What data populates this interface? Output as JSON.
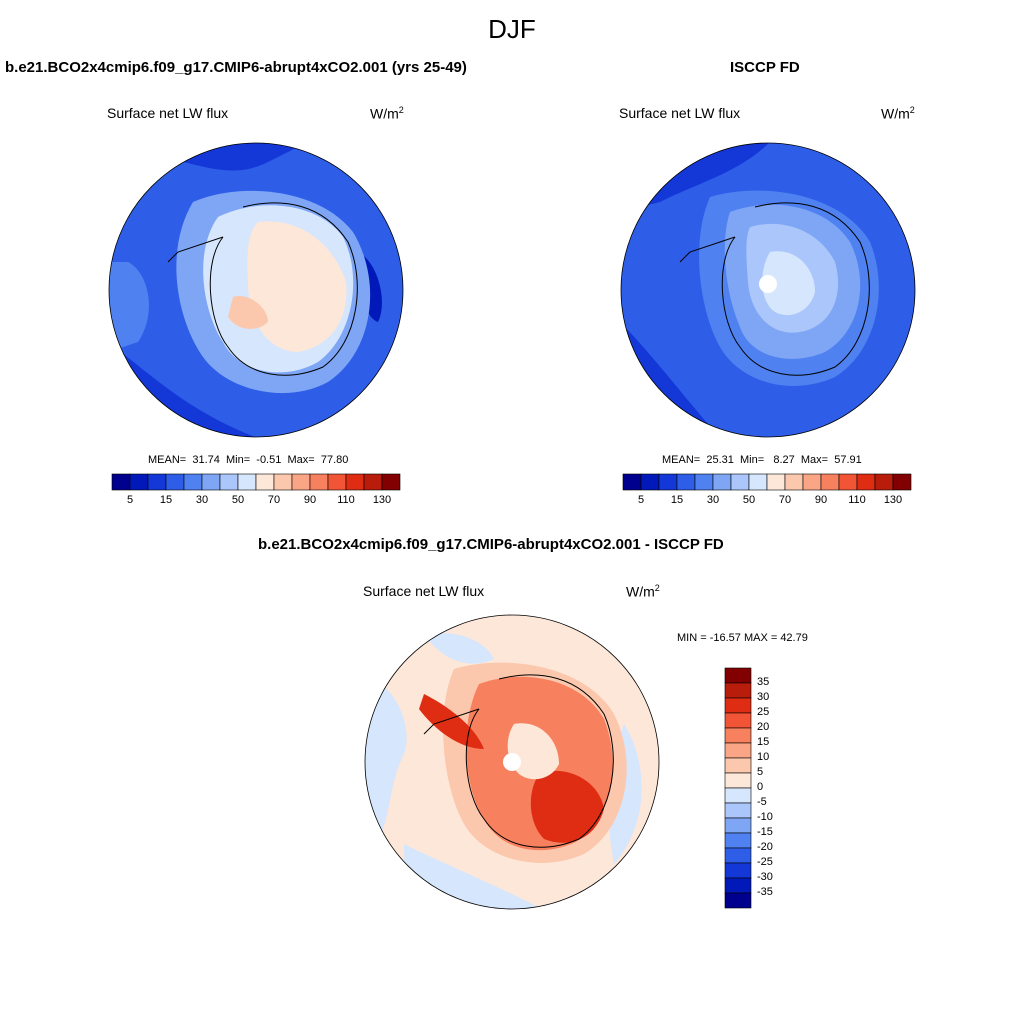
{
  "title": "DJF",
  "panels": [
    {
      "id": "model",
      "title": "b.e21.BCO2x4cmip6.f09_g17.CMIP6-abrupt4xCO2.001 (yrs 25-49)",
      "variable": "Surface net LW flux",
      "units_base": "W/m",
      "units_sup": "2",
      "stats": {
        "mean_label": "MEAN=",
        "mean": "31.74",
        "min_label": "Min=",
        "min": "-0.51",
        "max_label": "Max=",
        "max": "77.80"
      }
    },
    {
      "id": "obs",
      "title": "ISCCP FD",
      "variable": "Surface net LW flux",
      "units_base": "W/m",
      "units_sup": "2",
      "stats": {
        "mean_label": "MEAN=",
        "mean": "25.31",
        "min_label": "Min=",
        "min": "8.27",
        "max_label": "Max=",
        "max": "57.91"
      }
    },
    {
      "id": "diff",
      "title": "b.e21.BCO2x4cmip6.f09_g17.CMIP6-abrupt4xCO2.001 - ISCCP FD",
      "variable": "Surface net LW flux",
      "units_base": "W/m",
      "units_sup": "2",
      "minmax_text": "MIN = -16.57 MAX =  42.79"
    }
  ],
  "colorbar_abs": {
    "colors": [
      "#00008f",
      "#0019b8",
      "#1438d8",
      "#2e5ee8",
      "#4f82f0",
      "#7ea6f5",
      "#aac6fa",
      "#d6e6fd",
      "#fde7d9",
      "#fcc8ad",
      "#fba587",
      "#f7805e",
      "#f25535",
      "#de2d13",
      "#b81c0a",
      "#820002"
    ],
    "labels": [
      "5",
      "15",
      "30",
      "50",
      "70",
      "90",
      "110",
      "130"
    ]
  },
  "colorbar_diff": {
    "colors": [
      "#820002",
      "#b81c0a",
      "#de2d13",
      "#f25535",
      "#f7805e",
      "#fba587",
      "#fcc8ad",
      "#fde7d9",
      "#d6e6fd",
      "#aac6fa",
      "#7ea6f5",
      "#4f82f0",
      "#2e5ee8",
      "#1438d8",
      "#0019b8",
      "#00008f"
    ],
    "labels": [
      "35",
      "30",
      "25",
      "20",
      "15",
      "10",
      "5",
      "0",
      "-5",
      "-10",
      "-15",
      "-20",
      "-25",
      "-30",
      "-35"
    ]
  },
  "colors": {
    "ocean_model": "#2e5ee8",
    "ocean_obs": "#2e5ee8",
    "diff_ocean": "#fde7d9",
    "diff_land": "#f25535"
  }
}
